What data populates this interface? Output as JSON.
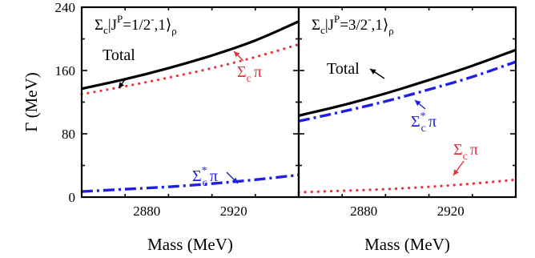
{
  "chart_data": [
    {
      "type": "line",
      "title": "Σc|J^P=1/2⁻,1⟩ρ",
      "title_parts": {
        "base": "Σ",
        "base_sub": "c",
        "bar": "|J",
        "sup": "P",
        "eq": "=1/2",
        "sup2": "-",
        "tail": ",1⟩",
        "tail_sub": "ρ"
      },
      "xlabel": "Mass (MeV)",
      "ylabel": "Γ (MeV)",
      "xlim": [
        2850,
        2950
      ],
      "ylim": [
        0,
        240
      ],
      "xticks": [
        2880,
        2920
      ],
      "yticks": [
        0,
        80,
        160,
        240
      ],
      "series": [
        {
          "name": "Total",
          "style": "solid",
          "color": "#000000",
          "x": [
            2850,
            2870,
            2890,
            2910,
            2930,
            2950
          ],
          "y": [
            137,
            149,
            163,
            179,
            198,
            222
          ]
        },
        {
          "name": "Σcπ",
          "style": "dotted",
          "color": "#e8323c",
          "x": [
            2850,
            2870,
            2890,
            2910,
            2930,
            2950
          ],
          "y": [
            130,
            140,
            151,
            163,
            177,
            193
          ]
        },
        {
          "name": "Σc*π",
          "style": "dashdot",
          "color": "#1e1ee6",
          "x": [
            2850,
            2870,
            2890,
            2910,
            2930,
            2950
          ],
          "y": [
            7,
            10,
            13,
            17,
            22,
            28
          ]
        }
      ],
      "annotations": [
        {
          "label": "Total",
          "sub": "",
          "sup": "",
          "greek": ""
        },
        {
          "label": "Σ",
          "sub": "c",
          "sup": "",
          "greek": "π"
        },
        {
          "label": "Σ",
          "sub": "c",
          "sup": "*",
          "greek": "π"
        }
      ]
    },
    {
      "type": "line",
      "title": "Σc|J^P=3/2⁻,1⟩ρ",
      "title_parts": {
        "base": "Σ",
        "base_sub": "c",
        "bar": "|J",
        "sup": "P",
        "eq": "=3/2",
        "sup2": "-",
        "tail": ",1⟩",
        "tail_sub": "ρ"
      },
      "xlabel": "Mass (MeV)",
      "ylabel": "",
      "xlim": [
        2850,
        2950
      ],
      "ylim": [
        0,
        240
      ],
      "xticks": [
        2880,
        2920
      ],
      "yticks": [
        0,
        80,
        160,
        240
      ],
      "series": [
        {
          "name": "Total",
          "style": "solid",
          "color": "#000000",
          "x": [
            2850,
            2870,
            2890,
            2910,
            2930,
            2950
          ],
          "y": [
            103,
            116,
            131,
            148,
            166,
            186
          ]
        },
        {
          "name": "Σc*π",
          "style": "dashdot",
          "color": "#1e1ee6",
          "x": [
            2850,
            2870,
            2890,
            2910,
            2930,
            2950
          ],
          "y": [
            96,
            108,
            121,
            136,
            152,
            171
          ]
        },
        {
          "name": "Σcπ",
          "style": "dotted",
          "color": "#e8323c",
          "x": [
            2850,
            2870,
            2890,
            2910,
            2930,
            2950
          ],
          "y": [
            6,
            8,
            10,
            13,
            17,
            22
          ]
        }
      ],
      "annotations": [
        {
          "label": "Total",
          "sub": "",
          "sup": "",
          "greek": ""
        },
        {
          "label": "Σ",
          "sub": "c",
          "sup": "*",
          "greek": "π"
        },
        {
          "label": "Σ",
          "sub": "c",
          "sup": "",
          "greek": "π"
        }
      ]
    }
  ]
}
